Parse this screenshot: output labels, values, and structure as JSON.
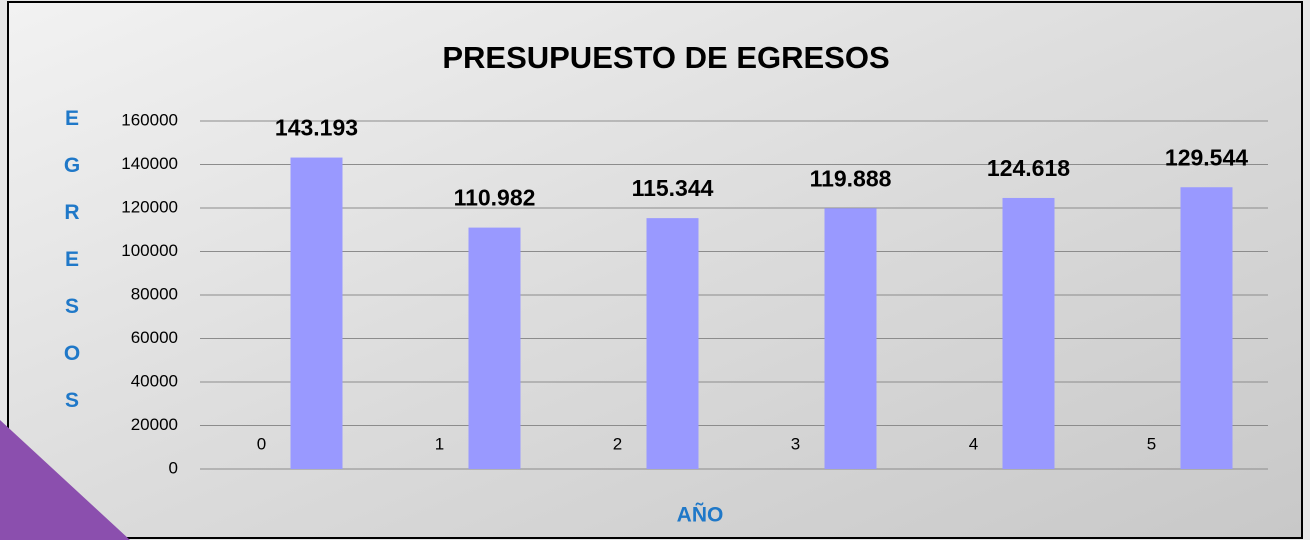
{
  "chart_data": {
    "type": "bar",
    "title": "PRESUPUESTO DE EGRESOS",
    "x_label": "AÑO",
    "y_label": "EGRESOS",
    "categories": [
      null,
      null,
      null,
      null,
      null,
      null
    ],
    "series": [
      {
        "color": "#b0503c",
        "values": [
          0,
          1,
          2,
          3,
          4,
          5
        ]
      },
      {
        "color": "#9999ff",
        "values": [
          143193,
          110982,
          115344,
          119888,
          124618,
          129544
        ],
        "value_labels": [
          "143.193",
          "110.982",
          "115.344",
          "119.888",
          "124.618",
          "129.544"
        ]
      }
    ],
    "ylim": [
      0,
      160000
    ],
    "yticks": [
      0,
      20000,
      40000,
      60000,
      80000,
      100000,
      120000,
      140000,
      160000
    ],
    "grid": true
  }
}
